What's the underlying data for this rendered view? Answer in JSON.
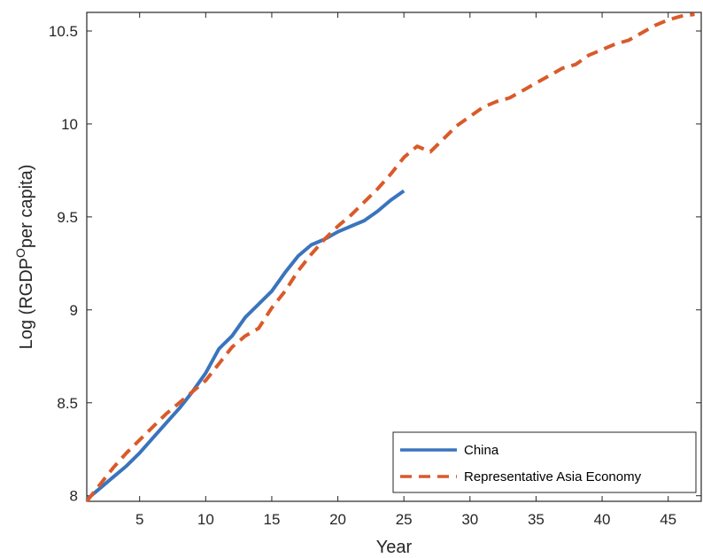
{
  "chart_data": {
    "type": "line",
    "xlabel": "Year",
    "ylabel": {
      "prefix": "Log (RGDP",
      "superscript": "O",
      "suffix": "per capita)"
    },
    "xlim": [
      1,
      47.5
    ],
    "ylim": [
      7.97,
      10.6
    ],
    "xticks": [
      5,
      10,
      15,
      20,
      25,
      30,
      35,
      40,
      45
    ],
    "yticks": [
      8,
      8.5,
      9,
      9.5,
      10,
      10.5
    ],
    "ytick_labels": [
      "8",
      "8.5",
      "9",
      "9.5",
      "10",
      "10.5"
    ],
    "grid": false,
    "legend_position": "bottom-right",
    "series": [
      {
        "name": "China",
        "color": "#3a74bd",
        "style": "solid",
        "x": [
          1,
          2,
          3,
          4,
          5,
          6,
          7,
          8,
          9,
          10,
          11,
          12,
          13,
          14,
          15,
          16,
          17,
          18,
          19,
          20,
          21,
          22,
          23,
          24,
          25
        ],
        "y": [
          7.98,
          8.04,
          8.1,
          8.16,
          8.23,
          8.31,
          8.39,
          8.47,
          8.56,
          8.66,
          8.79,
          8.86,
          8.96,
          9.03,
          9.1,
          9.2,
          9.29,
          9.35,
          9.38,
          9.42,
          9.45,
          9.48,
          9.53,
          9.59,
          9.64
        ]
      },
      {
        "name": "Representative Asia Economy",
        "color": "#d95a2a",
        "style": "dashed",
        "x": [
          1,
          2,
          3,
          4,
          5,
          6,
          7,
          8,
          9,
          10,
          11,
          12,
          13,
          14,
          15,
          16,
          17,
          18,
          19,
          20,
          21,
          22,
          23,
          24,
          25,
          26,
          27,
          28,
          29,
          30,
          31,
          32,
          33,
          34,
          35,
          36,
          37,
          38,
          39,
          40,
          41,
          42,
          43,
          44,
          45,
          46,
          47
        ],
        "y": [
          7.97,
          8.06,
          8.15,
          8.23,
          8.3,
          8.37,
          8.44,
          8.5,
          8.56,
          8.62,
          8.71,
          8.8,
          8.86,
          8.9,
          9.01,
          9.1,
          9.21,
          9.3,
          9.38,
          9.45,
          9.51,
          9.58,
          9.65,
          9.73,
          9.82,
          9.88,
          9.85,
          9.92,
          9.99,
          10.04,
          10.09,
          10.12,
          10.14,
          10.18,
          10.22,
          10.26,
          10.3,
          10.32,
          10.37,
          10.4,
          10.43,
          10.45,
          10.49,
          10.53,
          10.56,
          10.58,
          10.59
        ]
      }
    ]
  }
}
